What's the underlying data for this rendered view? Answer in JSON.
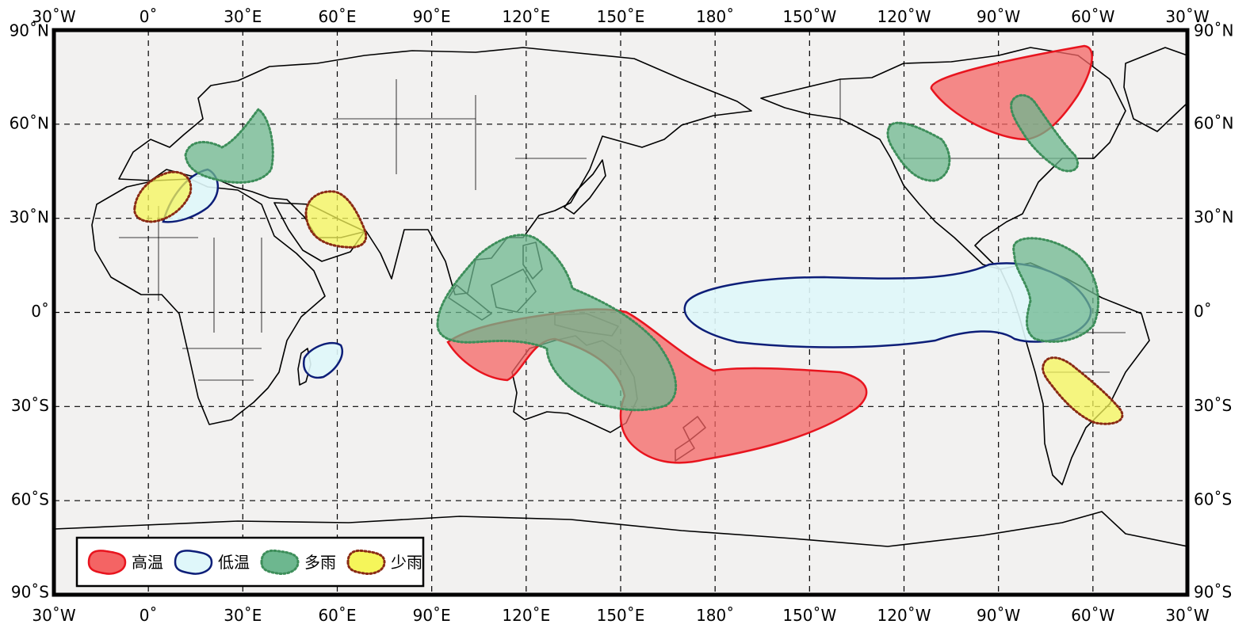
{
  "map": {
    "projection": "equirectangular",
    "lon_range": [
      -30,
      330
    ],
    "lat_range": [
      -90,
      90
    ],
    "grid_interval_deg": 30,
    "background_color": "#f2f1f0",
    "lon_labels": [
      "30˚W",
      "0˚",
      "30˚E",
      "60˚E",
      "90˚E",
      "120˚E",
      "150˚E",
      "180˚",
      "150˚W",
      "120˚W",
      "90˚W",
      "60˚W",
      "30˚W"
    ],
    "lat_labels": [
      "90˚N",
      "60˚N",
      "30˚N",
      "0˚",
      "30˚S",
      "60˚S",
      "90˚S"
    ]
  },
  "legend": {
    "items": [
      {
        "key": "warm",
        "label": "高温",
        "fill": "#f46464",
        "stroke": "#e8141e",
        "line": "solid"
      },
      {
        "key": "cool",
        "label": "低温",
        "fill": "#dff7fa",
        "stroke": "#0d1e78",
        "line": "solid"
      },
      {
        "key": "wet",
        "label": "多雨",
        "fill": "#6db78f",
        "stroke": "#3d8e5a",
        "line": "dotted"
      },
      {
        "key": "dry",
        "label": "少雨",
        "fill": "#f5f55a",
        "stroke": "#8a2a14",
        "line": "dotted"
      }
    ]
  },
  "regions": [
    {
      "name": "canada-warm",
      "category": "warm"
    },
    {
      "name": "australia-nz-warm",
      "category": "warm"
    },
    {
      "name": "equatorial-pacific-cool",
      "category": "cool"
    },
    {
      "name": "mediterranean-cool",
      "category": "cool"
    },
    {
      "name": "madagascar-cool",
      "category": "cool"
    },
    {
      "name": "europe-wet",
      "category": "wet"
    },
    {
      "name": "maritime-continent-wet",
      "category": "wet"
    },
    {
      "name": "north-america-west-wet",
      "category": "wet"
    },
    {
      "name": "north-america-east-wet",
      "category": "wet"
    },
    {
      "name": "caribbean-south-america-wet",
      "category": "wet"
    },
    {
      "name": "iberia-dry",
      "category": "dry"
    },
    {
      "name": "arabia-dry",
      "category": "dry"
    },
    {
      "name": "south-america-dry",
      "category": "dry"
    }
  ]
}
